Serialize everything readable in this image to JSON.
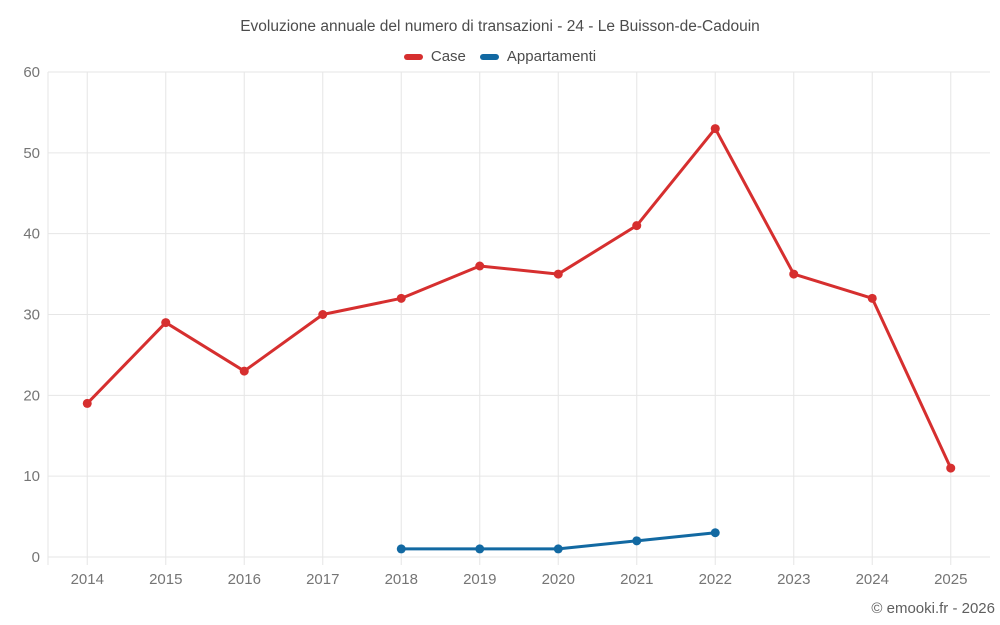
{
  "title": "Evoluzione annuale del numero di transazioni - 24 - Le Buisson-de-Cadouin",
  "legend": [
    {
      "label": "Case",
      "color": "#d62f2f"
    },
    {
      "label": "Appartamenti",
      "color": "#1269a2"
    }
  ],
  "footer": {
    "copyright": "© emooki.fr - 2026"
  },
  "colors": {
    "grid": "#e6e6e6",
    "axis_label": "#757575",
    "title_text": "#4c4c4c",
    "background": "#ffffff",
    "case_red": "#d62f2f",
    "appartamenti_blue": "#1269a2"
  },
  "chart_data": {
    "type": "line",
    "title": "Evoluzione annuale del numero di transazioni - 24 - Le Buisson-de-Cadouin",
    "categories": [
      "2014",
      "2015",
      "2016",
      "2017",
      "2018",
      "2019",
      "2020",
      "2021",
      "2022",
      "2023",
      "2024",
      "2025"
    ],
    "series": [
      {
        "name": "Case",
        "color": "#d62f2f",
        "values": [
          19,
          29,
          23,
          30,
          32,
          36,
          35,
          41,
          53,
          35,
          32,
          11
        ]
      },
      {
        "name": "Appartamenti",
        "color": "#1269a2",
        "values": [
          null,
          null,
          null,
          null,
          1,
          1,
          1,
          2,
          3,
          null,
          null,
          null
        ]
      }
    ],
    "xlabel": "",
    "ylabel": "",
    "ylim": [
      0,
      60
    ],
    "yticks": [
      0,
      10,
      20,
      30,
      40,
      50,
      60
    ],
    "grid": true,
    "legend_position": "top",
    "marker": "circle"
  }
}
